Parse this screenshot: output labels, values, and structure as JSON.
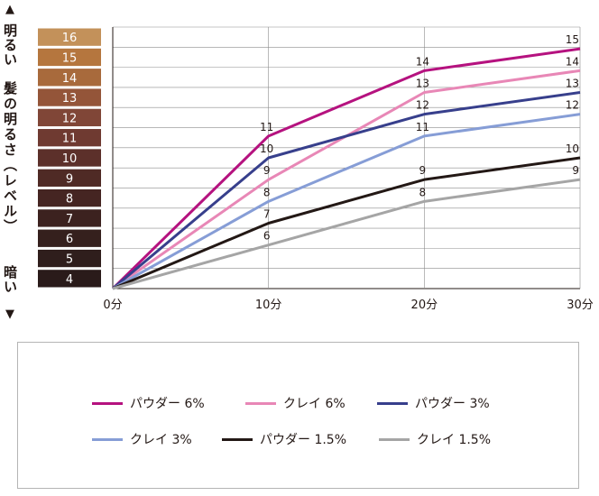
{
  "axis_label": {
    "top_arrow": "▲",
    "top": "明るい",
    "middle": "髪の明るさ（レベル）",
    "bottom": "暗い",
    "bottom_arrow": "▼"
  },
  "level_scale": {
    "levels": [
      "16",
      "15",
      "14",
      "13",
      "12",
      "11",
      "10",
      "9",
      "8",
      "7",
      "6",
      "5",
      "4"
    ],
    "colors": [
      "#c3915a",
      "#b5763e",
      "#a86a3c",
      "#945539",
      "#804637",
      "#6f3a31",
      "#5c302a",
      "#4f2a25",
      "#452522",
      "#3c221f",
      "#35201d",
      "#2f1e1c",
      "#2a1b1a"
    ]
  },
  "chart_data": {
    "type": "line",
    "categories": [
      "0分",
      "10分",
      "20分",
      "30分"
    ],
    "ylabel": "髪の明るさ（レベル）",
    "ylim": [
      4,
      16
    ],
    "grid": true,
    "series": [
      {
        "name": "パウダー 6%",
        "color": "#b5127f",
        "values": [
          4,
          11,
          14,
          15
        ],
        "labels": [
          "",
          "11",
          "14",
          "15"
        ]
      },
      {
        "name": "クレイ 6%",
        "color": "#e887b6",
        "values": [
          4,
          9,
          13,
          14
        ],
        "labels": [
          "",
          "9",
          "13",
          "14"
        ]
      },
      {
        "name": "パウダー 3%",
        "color": "#373f8c",
        "values": [
          4,
          10,
          12,
          13
        ],
        "labels": [
          "",
          "10",
          "12",
          "13"
        ]
      },
      {
        "name": "クレイ 3%",
        "color": "#869dd6",
        "values": [
          4,
          8,
          11,
          12
        ],
        "labels": [
          "",
          "8",
          "11",
          "12"
        ]
      },
      {
        "name": "パウダー 1.5%",
        "color": "#231815",
        "values": [
          4,
          7,
          9,
          10
        ],
        "labels": [
          "",
          "7",
          "9",
          "10"
        ]
      },
      {
        "name": "クレイ 1.5%",
        "color": "#a5a5a5",
        "values": [
          4,
          6,
          8,
          9
        ],
        "labels": [
          "",
          "6",
          "8",
          "9"
        ]
      }
    ]
  }
}
